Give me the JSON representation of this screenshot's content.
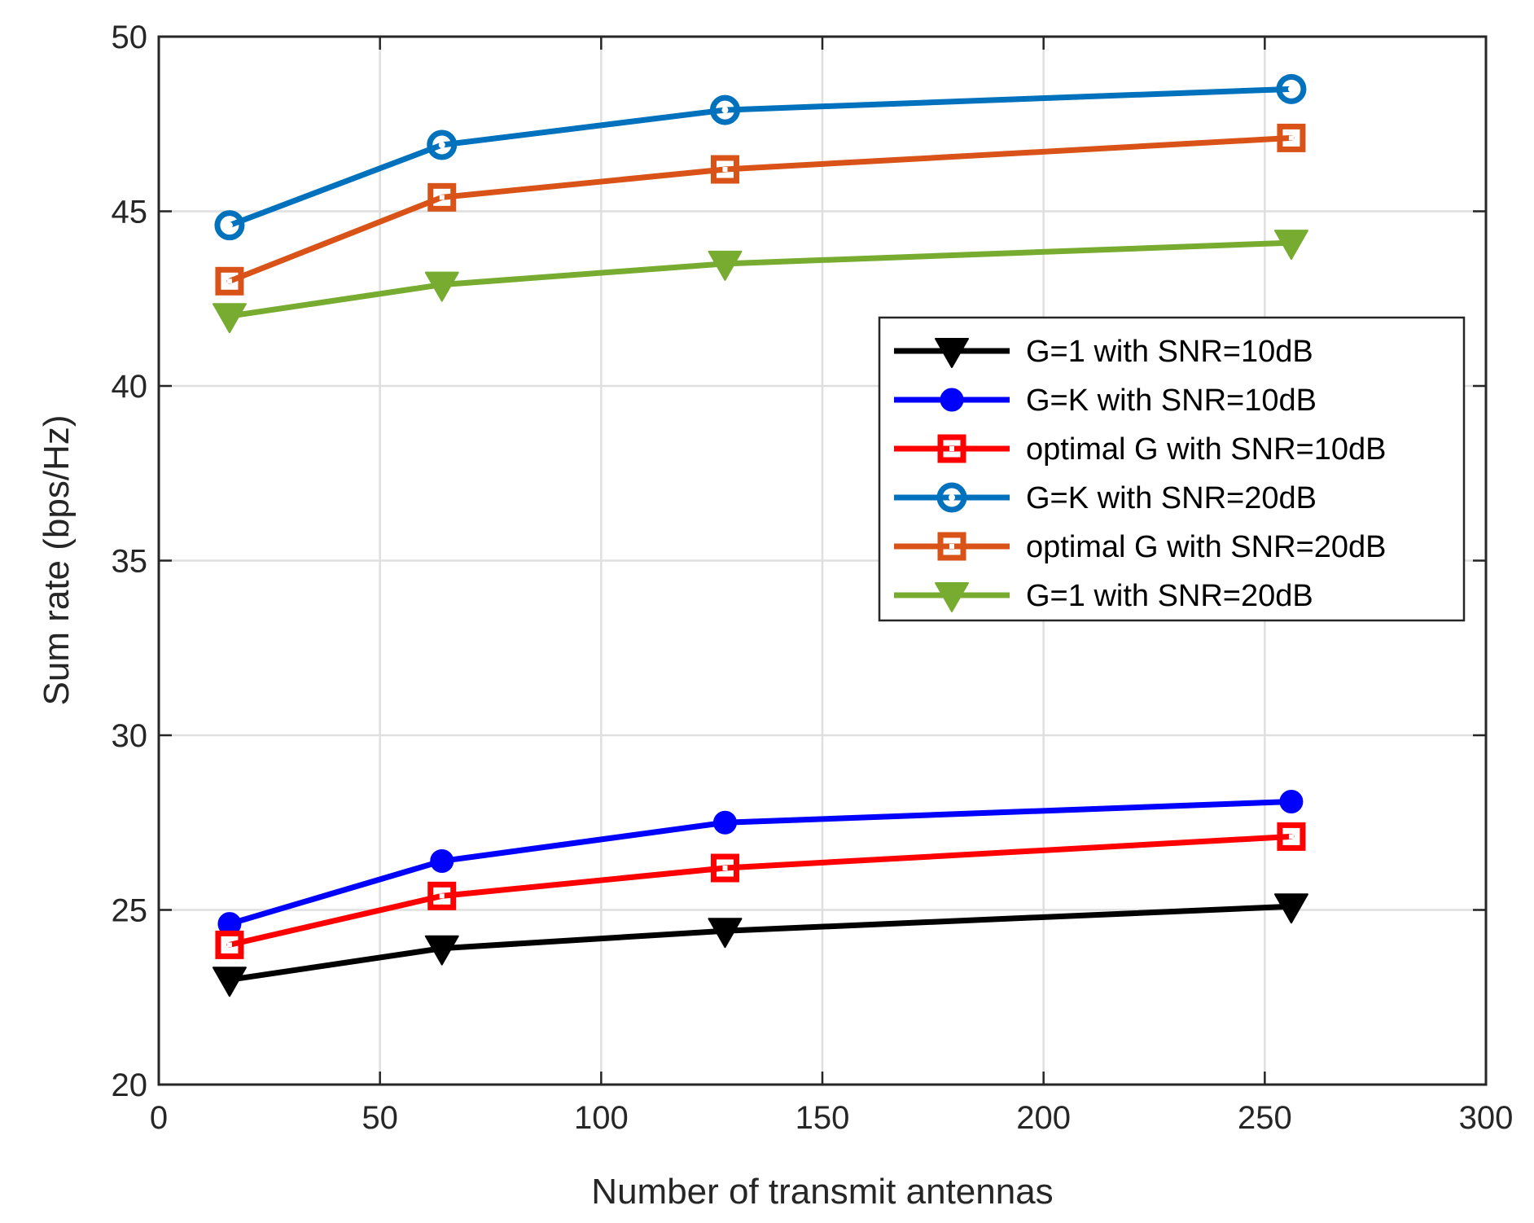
{
  "chart_data": {
    "type": "line",
    "title": "",
    "xlabel": "Number of transmit antennas",
    "ylabel": "Sum rate (bps/Hz)",
    "xlim": [
      0,
      300
    ],
    "ylim": [
      20,
      50
    ],
    "xticks": [
      0,
      50,
      100,
      150,
      200,
      250,
      300
    ],
    "yticks": [
      20,
      25,
      30,
      35,
      40,
      45,
      50
    ],
    "grid": true,
    "legend_position": "center-right",
    "x": [
      16,
      64,
      128,
      256
    ],
    "series": [
      {
        "name": "G=1 with SNR=10dB",
        "values": [
          23.0,
          23.9,
          24.4,
          25.1
        ],
        "color": "#000000",
        "marker": "triangle-down",
        "filled": true
      },
      {
        "name": "G=K with SNR=10dB",
        "values": [
          24.6,
          26.4,
          27.5,
          28.1
        ],
        "color": "#0000ff",
        "marker": "circle",
        "filled": true
      },
      {
        "name": "optimal G with SNR=10dB",
        "values": [
          24.0,
          25.4,
          26.2,
          27.1
        ],
        "color": "#ff0000",
        "marker": "square",
        "filled": false
      },
      {
        "name": "G=K with SNR=20dB",
        "values": [
          44.6,
          46.9,
          47.9,
          48.5
        ],
        "color": "#0072bd",
        "marker": "circle",
        "filled": false
      },
      {
        "name": "optimal G with SNR=20dB",
        "values": [
          43.0,
          45.4,
          46.2,
          47.1
        ],
        "color": "#d95319",
        "marker": "square",
        "filled": false
      },
      {
        "name": "G=1 with SNR=20dB",
        "values": [
          42.0,
          42.9,
          43.5,
          44.1
        ],
        "color": "#77ac30",
        "marker": "triangle-down",
        "filled": true
      }
    ]
  }
}
